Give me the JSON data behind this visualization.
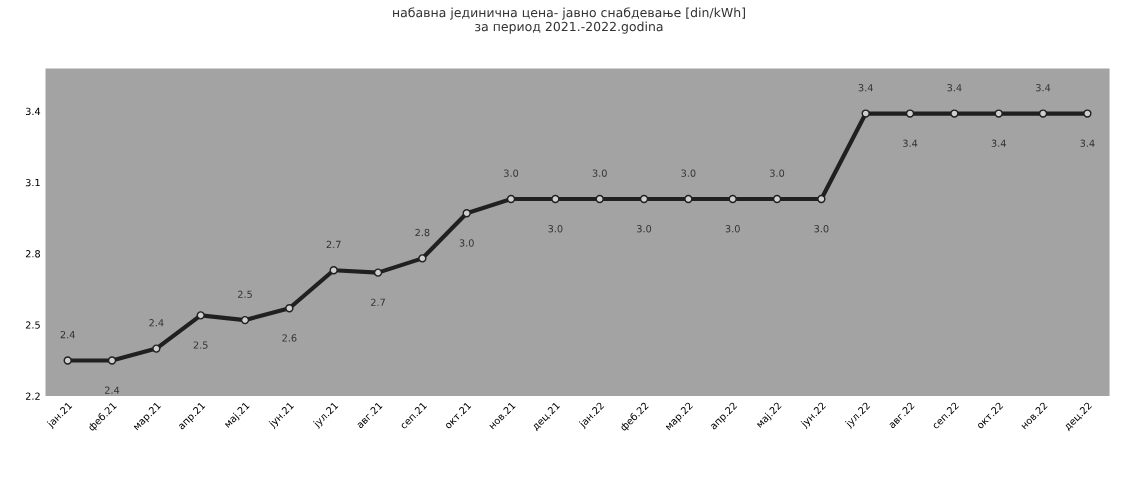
{
  "chart_data": {
    "type": "line",
    "title": "набавна јединична цена- јавно снабдевање [din/kWh]\nза период 2021.-2022.godina",
    "categories": [
      "јан.21",
      "феб.21",
      "мар.21",
      "апр.21",
      "мај.21",
      "јун.21",
      "јул.21",
      "авг.21",
      "сеп.21",
      "окт.21",
      "нов.21",
      "дец.21",
      "јан.22",
      "феб.22",
      "мар.22",
      "апр.22",
      "мај.22",
      "јун.22",
      "јул.22",
      "авг.22",
      "сеп.22",
      "окт.22",
      "нов.22",
      "дец.22"
    ],
    "series": [
      {
        "color": "#202020",
        "values": [
          2.35,
          2.35,
          2.4,
          2.54,
          2.52,
          2.57,
          2.73,
          2.72,
          2.78,
          2.97,
          3.03,
          3.03,
          3.03,
          3.03,
          3.03,
          3.03,
          3.03,
          3.03,
          3.39,
          3.39,
          3.39,
          3.39,
          3.39,
          3.39
        ],
        "value_labels": [
          "2.4",
          "2.4",
          "2.4",
          "2.5",
          "2.5",
          "2.6",
          "2.7",
          "2.7",
          "2.8",
          "3.0",
          "3.0",
          "3.0",
          "3.0",
          "3.0",
          "3.0",
          "3.0",
          "3.0",
          "3.0",
          "3.4",
          "3.4",
          "3.4",
          "3.4",
          "3.4",
          "3.4"
        ]
      }
    ],
    "ylim": [
      2.2,
      3.58
    ],
    "yticks": [
      2.2,
      2.5,
      2.8,
      3.1,
      3.4
    ],
    "marker": "circle",
    "line_style": "solid",
    "grid": false,
    "legend": false
  }
}
